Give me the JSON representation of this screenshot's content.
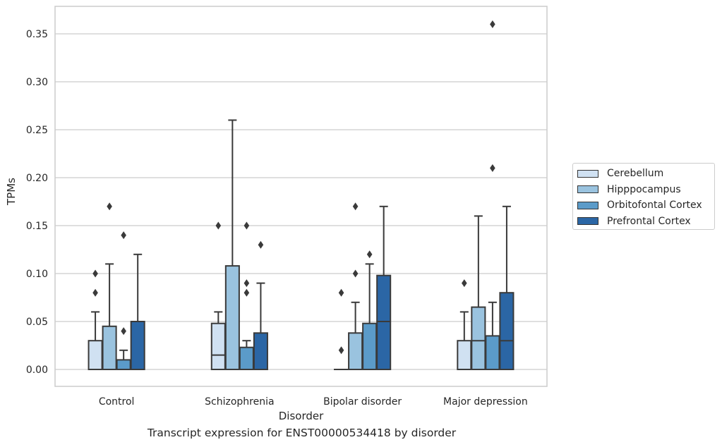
{
  "chart_data": {
    "type": "boxplot",
    "title": "Transcript expression for ENST00000534418 by disorder",
    "xlabel": "Disorder",
    "ylabel": "TPMs",
    "categories": [
      "Control",
      "Schizophrenia",
      "Bipolar disorder",
      "Major depression"
    ],
    "ylim": [
      -0.018,
      0.378
    ],
    "yticks": [
      "0.00",
      "0.05",
      "0.10",
      "0.15",
      "0.20",
      "0.25",
      "0.30",
      "0.35"
    ],
    "grid": true,
    "legend_position": "right",
    "series": [
      {
        "name": "Cerebellum",
        "color": "#d0e1f2",
        "boxes": [
          {
            "whisker_low": 0.0,
            "q1": 0.0,
            "median": 0.0,
            "q3": 0.03,
            "whisker_high": 0.06,
            "outliers": [
              0.08,
              0.1
            ]
          },
          {
            "whisker_low": 0.0,
            "q1": 0.0,
            "median": 0.015,
            "q3": 0.048,
            "whisker_high": 0.06,
            "outliers": [
              0.15
            ]
          },
          {
            "whisker_low": 0.0,
            "q1": 0.0,
            "median": 0.0,
            "q3": 0.0,
            "whisker_high": 0.0,
            "outliers": [
              0.02,
              0.08
            ]
          },
          {
            "whisker_low": 0.0,
            "q1": 0.0,
            "median": 0.0,
            "q3": 0.03,
            "whisker_high": 0.06,
            "outliers": [
              0.09
            ]
          }
        ]
      },
      {
        "name": "Hipppocampus",
        "color": "#9ac3df",
        "boxes": [
          {
            "whisker_low": 0.0,
            "q1": 0.0,
            "median": 0.0,
            "q3": 0.045,
            "whisker_high": 0.11,
            "outliers": [
              0.17
            ]
          },
          {
            "whisker_low": 0.0,
            "q1": 0.0,
            "median": 0.0,
            "q3": 0.108,
            "whisker_high": 0.26,
            "outliers": []
          },
          {
            "whisker_low": 0.0,
            "q1": 0.0,
            "median": 0.0,
            "q3": 0.038,
            "whisker_high": 0.07,
            "outliers": [
              0.1,
              0.17
            ]
          },
          {
            "whisker_low": 0.0,
            "q1": 0.0,
            "median": 0.03,
            "q3": 0.065,
            "whisker_high": 0.16,
            "outliers": []
          }
        ]
      },
      {
        "name": "Orbitofontal Cortex",
        "color": "#5b9bc9",
        "boxes": [
          {
            "whisker_low": 0.0,
            "q1": 0.0,
            "median": 0.0,
            "q3": 0.01,
            "whisker_high": 0.02,
            "outliers": [
              0.04,
              0.14
            ]
          },
          {
            "whisker_low": 0.0,
            "q1": 0.0,
            "median": 0.0,
            "q3": 0.023,
            "whisker_high": 0.03,
            "outliers": [
              0.08,
              0.09,
              0.15
            ]
          },
          {
            "whisker_low": 0.0,
            "q1": 0.0,
            "median": 0.0,
            "q3": 0.048,
            "whisker_high": 0.11,
            "outliers": [
              0.12
            ]
          },
          {
            "whisker_low": 0.0,
            "q1": 0.0,
            "median": 0.0,
            "q3": 0.035,
            "whisker_high": 0.07,
            "outliers": [
              0.21,
              0.36
            ]
          }
        ]
      },
      {
        "name": "Prefrontal Cortex",
        "color": "#2b66a5",
        "boxes": [
          {
            "whisker_low": 0.0,
            "q1": 0.0,
            "median": 0.0,
            "q3": 0.05,
            "whisker_high": 0.12,
            "outliers": []
          },
          {
            "whisker_low": 0.0,
            "q1": 0.0,
            "median": 0.0,
            "q3": 0.038,
            "whisker_high": 0.09,
            "outliers": [
              0.13
            ]
          },
          {
            "whisker_low": 0.0,
            "q1": 0.0,
            "median": 0.05,
            "q3": 0.098,
            "whisker_high": 0.17,
            "outliers": []
          },
          {
            "whisker_low": 0.0,
            "q1": 0.0,
            "median": 0.03,
            "q3": 0.08,
            "whisker_high": 0.17,
            "outliers": []
          }
        ]
      }
    ]
  }
}
